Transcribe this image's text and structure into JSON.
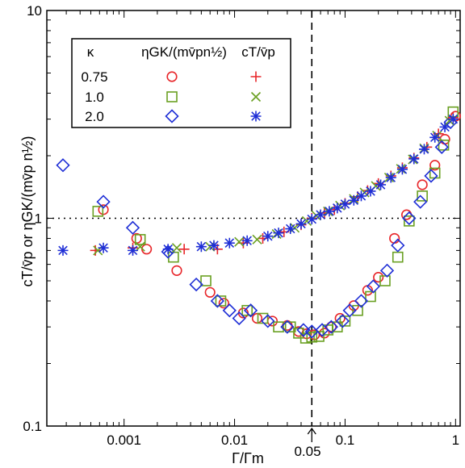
{
  "chart_data": {
    "type": "scatter",
    "xscale": "log",
    "yscale": "log",
    "xlim": [
      0.0002,
      1.1
    ],
    "ylim": [
      0.1,
      10
    ],
    "xlabel": "Γ/Γm",
    "ylabel": "cT/v̄p  or  ηGK/(mv̄p n½)",
    "x_ticks": [
      {
        "value": 0.001,
        "label": "0.001"
      },
      {
        "value": 0.01,
        "label": "0.01"
      },
      {
        "value": 0.1,
        "label": "0.1"
      },
      {
        "value": 1,
        "label": "1"
      }
    ],
    "y_ticks": [
      {
        "value": 0.1,
        "label": "0.1"
      },
      {
        "value": 1,
        "label": "1"
      },
      {
        "value": 10,
        "label": "10"
      }
    ],
    "reference_lines": {
      "horizontal_y": 1,
      "vertical_x": 0.05,
      "vertical_label": "0.05"
    },
    "legend": {
      "header_kappa": "κ",
      "header_eta": "ηGK/(mv̄pn½)",
      "header_ct": "cT/v̄p",
      "rows": [
        {
          "kappa": "0.75",
          "color": "#e8262a",
          "eta_marker": "circle",
          "ct_marker": "plus"
        },
        {
          "kappa": "1.0",
          "color": "#6aa022",
          "eta_marker": "square",
          "ct_marker": "x"
        },
        {
          "kappa": "2.0",
          "color": "#1f2fd6",
          "eta_marker": "diamond",
          "ct_marker": "asterisk"
        }
      ]
    },
    "series": [
      {
        "name": "ηGK κ=0.75",
        "marker": "circle",
        "color": "#e8262a",
        "points": [
          [
            0.00065,
            1.1
          ],
          [
            0.0013,
            0.8
          ],
          [
            0.0016,
            0.71
          ],
          [
            0.003,
            0.56
          ],
          [
            0.006,
            0.44
          ],
          [
            0.008,
            0.39
          ],
          [
            0.012,
            0.35
          ],
          [
            0.016,
            0.33
          ],
          [
            0.022,
            0.32
          ],
          [
            0.03,
            0.305
          ],
          [
            0.038,
            0.285
          ],
          [
            0.045,
            0.278
          ],
          [
            0.053,
            0.275
          ],
          [
            0.065,
            0.28
          ],
          [
            0.075,
            0.3
          ],
          [
            0.09,
            0.33
          ],
          [
            0.12,
            0.38
          ],
          [
            0.16,
            0.45
          ],
          [
            0.2,
            0.52
          ],
          [
            0.28,
            0.8
          ],
          [
            0.36,
            1.04
          ],
          [
            0.5,
            1.45
          ],
          [
            0.65,
            1.8
          ],
          [
            0.8,
            2.4
          ],
          [
            1.0,
            3.1
          ]
        ]
      },
      {
        "name": "ηGK κ=1.0",
        "marker": "square",
        "color": "#6aa022",
        "points": [
          [
            0.00058,
            1.08
          ],
          [
            0.0014,
            0.79
          ],
          [
            0.0028,
            0.65
          ],
          [
            0.0055,
            0.5
          ],
          [
            0.0075,
            0.4
          ],
          [
            0.013,
            0.36
          ],
          [
            0.018,
            0.33
          ],
          [
            0.025,
            0.3
          ],
          [
            0.032,
            0.3
          ],
          [
            0.038,
            0.28
          ],
          [
            0.044,
            0.265
          ],
          [
            0.05,
            0.268
          ],
          [
            0.058,
            0.27
          ],
          [
            0.07,
            0.29
          ],
          [
            0.085,
            0.3
          ],
          [
            0.1,
            0.32
          ],
          [
            0.13,
            0.36
          ],
          [
            0.17,
            0.42
          ],
          [
            0.23,
            0.5
          ],
          [
            0.3,
            0.65
          ],
          [
            0.38,
            0.97
          ],
          [
            0.5,
            1.28
          ],
          [
            0.65,
            1.65
          ],
          [
            0.78,
            2.25
          ],
          [
            0.95,
            3.25
          ]
        ]
      },
      {
        "name": "ηGK κ=2.0",
        "marker": "diamond",
        "color": "#1f2fd6",
        "points": [
          [
            0.00028,
            1.8
          ],
          [
            0.00065,
            1.2
          ],
          [
            0.0012,
            0.9
          ],
          [
            0.0025,
            0.69
          ],
          [
            0.0045,
            0.48
          ],
          [
            0.007,
            0.4
          ],
          [
            0.009,
            0.36
          ],
          [
            0.011,
            0.33
          ],
          [
            0.014,
            0.36
          ],
          [
            0.02,
            0.32
          ],
          [
            0.03,
            0.3
          ],
          [
            0.042,
            0.29
          ],
          [
            0.05,
            0.285
          ],
          [
            0.062,
            0.29
          ],
          [
            0.075,
            0.3
          ],
          [
            0.095,
            0.32
          ],
          [
            0.11,
            0.36
          ],
          [
            0.14,
            0.4
          ],
          [
            0.18,
            0.47
          ],
          [
            0.24,
            0.56
          ],
          [
            0.3,
            0.74
          ],
          [
            0.38,
            1.0
          ],
          [
            0.48,
            1.2
          ],
          [
            0.6,
            1.6
          ],
          [
            0.75,
            2.2
          ],
          [
            0.9,
            2.9
          ]
        ]
      },
      {
        "name": "cT κ=0.75",
        "marker": "plus",
        "color": "#e8262a",
        "points": [
          [
            0.00055,
            0.7
          ],
          [
            0.0012,
            0.72
          ],
          [
            0.0035,
            0.71
          ],
          [
            0.007,
            0.71
          ],
          [
            0.012,
            0.76
          ],
          [
            0.018,
            0.8
          ],
          [
            0.028,
            0.86
          ],
          [
            0.04,
            0.93
          ],
          [
            0.05,
            1.0
          ],
          [
            0.065,
            1.06
          ],
          [
            0.08,
            1.1
          ],
          [
            0.1,
            1.18
          ],
          [
            0.13,
            1.27
          ],
          [
            0.16,
            1.36
          ],
          [
            0.2,
            1.47
          ],
          [
            0.26,
            1.6
          ],
          [
            0.33,
            1.75
          ],
          [
            0.42,
            1.95
          ],
          [
            0.55,
            2.2
          ],
          [
            0.7,
            2.55
          ],
          [
            0.95,
            3.05
          ]
        ]
      },
      {
        "name": "cT κ=1.0",
        "marker": "x",
        "color": "#6aa022",
        "points": [
          [
            0.00058,
            0.7
          ],
          [
            0.0014,
            0.73
          ],
          [
            0.003,
            0.72
          ],
          [
            0.006,
            0.73
          ],
          [
            0.011,
            0.77
          ],
          [
            0.016,
            0.79
          ],
          [
            0.024,
            0.84
          ],
          [
            0.035,
            0.9
          ],
          [
            0.045,
            0.97
          ],
          [
            0.055,
            1.03
          ],
          [
            0.07,
            1.08
          ],
          [
            0.09,
            1.15
          ],
          [
            0.12,
            1.24
          ],
          [
            0.15,
            1.33
          ],
          [
            0.19,
            1.43
          ],
          [
            0.25,
            1.57
          ],
          [
            0.32,
            1.73
          ],
          [
            0.41,
            1.92
          ],
          [
            0.52,
            2.17
          ],
          [
            0.68,
            2.5
          ],
          [
            0.88,
            2.95
          ]
        ]
      },
      {
        "name": "cT κ=2.0",
        "marker": "asterisk",
        "color": "#1f2fd6",
        "points": [
          [
            0.00028,
            0.7
          ],
          [
            0.00065,
            0.72
          ],
          [
            0.0012,
            0.7
          ],
          [
            0.0025,
            0.71
          ],
          [
            0.005,
            0.73
          ],
          [
            0.0065,
            0.74
          ],
          [
            0.009,
            0.76
          ],
          [
            0.013,
            0.78
          ],
          [
            0.02,
            0.82
          ],
          [
            0.025,
            0.85
          ],
          [
            0.032,
            0.89
          ],
          [
            0.04,
            0.94
          ],
          [
            0.05,
            0.99
          ],
          [
            0.06,
            1.04
          ],
          [
            0.072,
            1.08
          ],
          [
            0.085,
            1.12
          ],
          [
            0.1,
            1.17
          ],
          [
            0.12,
            1.22
          ],
          [
            0.14,
            1.28
          ],
          [
            0.17,
            1.35
          ],
          [
            0.21,
            1.45
          ],
          [
            0.26,
            1.57
          ],
          [
            0.33,
            1.72
          ],
          [
            0.42,
            1.93
          ],
          [
            0.52,
            2.15
          ],
          [
            0.65,
            2.45
          ],
          [
            0.8,
            2.75
          ],
          [
            0.95,
            3.0
          ]
        ]
      }
    ]
  }
}
